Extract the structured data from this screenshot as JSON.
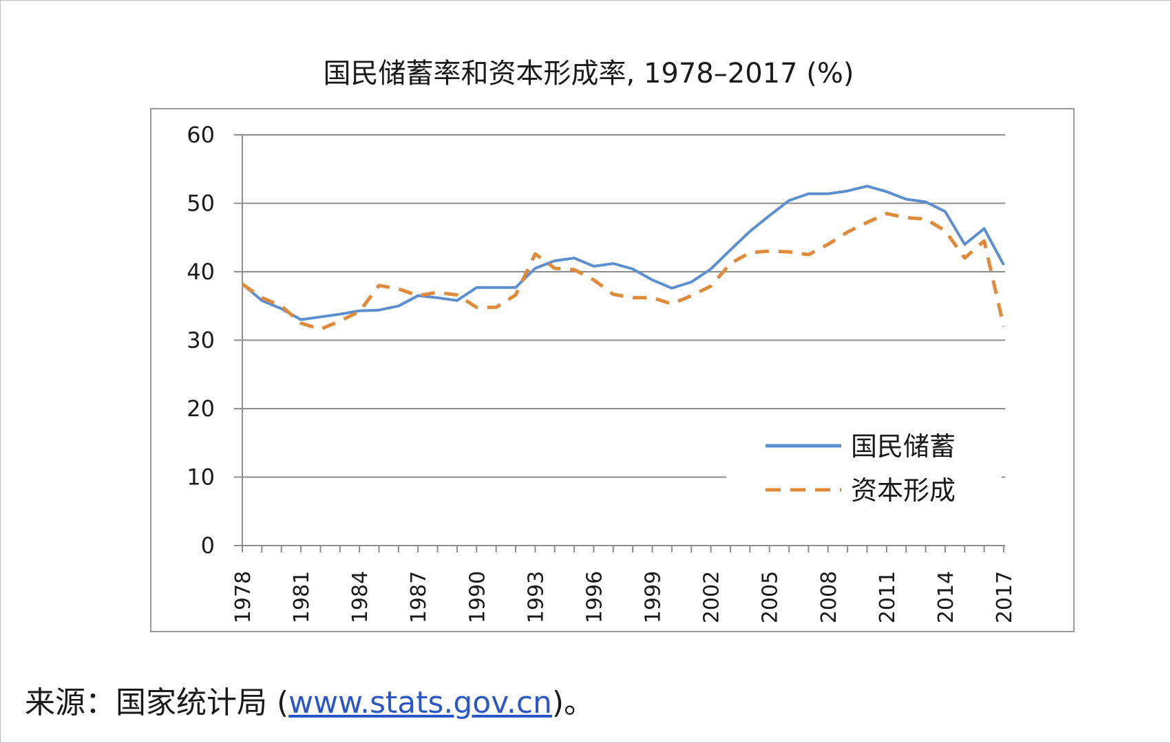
{
  "chart_data": {
    "type": "line",
    "title": "国民储蓄率和资本形成率, 1978–2017 (%)",
    "xlabel": "",
    "ylabel": "",
    "ylim": [
      0,
      60
    ],
    "yticks": [
      0,
      10,
      20,
      30,
      40,
      50,
      60
    ],
    "x": [
      1978,
      1979,
      1980,
      1981,
      1982,
      1983,
      1984,
      1985,
      1986,
      1987,
      1988,
      1989,
      1990,
      1991,
      1992,
      1993,
      1994,
      1995,
      1996,
      1997,
      1998,
      1999,
      2000,
      2001,
      2002,
      2003,
      2004,
      2005,
      2006,
      2007,
      2008,
      2009,
      2010,
      2011,
      2012,
      2013,
      2014,
      2015,
      2016,
      2017
    ],
    "xtick_labels": [
      "1978",
      "1981",
      "1984",
      "1987",
      "1990",
      "1993",
      "1996",
      "1999",
      "2002",
      "2005",
      "2008",
      "2011",
      "2014",
      "2017"
    ],
    "grid": true,
    "legend_position": "lower-right",
    "series": [
      {
        "name": "国民储蓄",
        "color": "#5b8fd0",
        "dash": "solid",
        "values": [
          38.2,
          35.8,
          34.6,
          33.0,
          33.4,
          33.8,
          34.3,
          34.4,
          35.0,
          36.5,
          36.2,
          35.8,
          37.7,
          37.7,
          37.7,
          40.5,
          41.6,
          42.0,
          40.8,
          41.2,
          40.4,
          38.8,
          37.6,
          38.5,
          40.4,
          43.2,
          45.9,
          48.2,
          50.4,
          51.4,
          51.4,
          51.8,
          52.5,
          51.7,
          50.6,
          50.2,
          48.8,
          44.0,
          46.3,
          41.0
        ]
      },
      {
        "name": "资本形成",
        "color": "#e08a3c",
        "dash": "dashed",
        "values": [
          38.2,
          36.2,
          35.0,
          32.5,
          31.6,
          32.8,
          34.2,
          38.0,
          37.5,
          36.5,
          37.0,
          36.6,
          34.8,
          34.8,
          36.6,
          42.6,
          40.5,
          40.3,
          38.8,
          36.7,
          36.2,
          36.2,
          35.3,
          36.5,
          37.9,
          41.2,
          42.8,
          43.0,
          42.9,
          42.5,
          44.0,
          45.8,
          47.2,
          48.5,
          47.9,
          47.7,
          46.0,
          42.0,
          44.5,
          32.0
        ]
      }
    ]
  },
  "source": {
    "prefix": "来源：国家统计局 (",
    "link_text": "www.stats.gov.cn",
    "suffix": ")。"
  }
}
